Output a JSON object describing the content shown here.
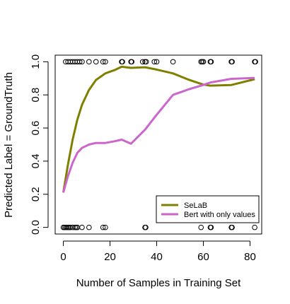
{
  "chart_data": {
    "type": "line",
    "title": "",
    "xlabel": "Number of Samples in Training Set",
    "ylabel": "Predicted Label = GroundTruth",
    "xlim": [
      -3.5,
      85
    ],
    "ylim": [
      -0.04,
      1.04
    ],
    "xticks": [
      0,
      20,
      40,
      60,
      80
    ],
    "yticks": [
      0.0,
      0.2,
      0.4,
      0.6,
      0.8,
      1.0
    ],
    "xtick_labels": [
      "0",
      "20",
      "40",
      "60",
      "80"
    ],
    "ytick_labels": [
      "0.0",
      "0.2",
      "0.4",
      "0.6",
      "0.8",
      "1.0"
    ],
    "grid": false,
    "legend_position": "bottom-right",
    "series": [
      {
        "name": "SeLaB",
        "color": "#808000",
        "x": [
          0,
          2,
          4,
          6,
          8,
          11,
          14,
          18,
          22,
          25,
          29,
          35,
          40,
          47,
          54,
          60,
          63,
          72,
          82
        ],
        "y": [
          0.21,
          0.38,
          0.53,
          0.65,
          0.74,
          0.83,
          0.89,
          0.93,
          0.95,
          0.97,
          0.963,
          0.967,
          0.953,
          0.93,
          0.89,
          0.862,
          0.856,
          0.86,
          0.895
        ]
      },
      {
        "name": "Bert with only values",
        "color": "#CC66CC",
        "x": [
          0,
          2,
          4,
          6,
          8,
          11,
          14,
          18,
          22,
          25,
          29,
          35,
          40,
          47,
          54,
          60,
          63,
          72,
          82
        ],
        "y": [
          0.21,
          0.31,
          0.39,
          0.45,
          0.48,
          0.5,
          0.51,
          0.51,
          0.52,
          0.53,
          0.505,
          0.59,
          0.68,
          0.8,
          0.835,
          0.86,
          0.875,
          0.897,
          0.902
        ]
      }
    ],
    "points": [
      {
        "x": 0,
        "y": 0
      },
      {
        "x": 0.5,
        "y": 0
      },
      {
        "x": 1,
        "y": 0
      },
      {
        "x": 1.5,
        "y": 0
      },
      {
        "x": 2,
        "y": 0
      },
      {
        "x": 2.5,
        "y": 0
      },
      {
        "x": 3,
        "y": 0
      },
      {
        "x": 4,
        "y": 0
      },
      {
        "x": 5,
        "y": 0
      },
      {
        "x": 5.5,
        "y": 0
      },
      {
        "x": 6,
        "y": 0
      },
      {
        "x": 8,
        "y": 0
      },
      {
        "x": 11,
        "y": 0
      },
      {
        "x": 17,
        "y": 0
      },
      {
        "x": 18,
        "y": 0
      },
      {
        "x": 35,
        "y": 0
      },
      {
        "x": 35.3,
        "y": 0
      },
      {
        "x": 59,
        "y": 0
      },
      {
        "x": 63,
        "y": 0
      },
      {
        "x": 63.3,
        "y": 0
      },
      {
        "x": 72,
        "y": 0
      },
      {
        "x": 72.3,
        "y": 0
      },
      {
        "x": 82,
        "y": 0
      },
      {
        "x": 1,
        "y": 1
      },
      {
        "x": 2,
        "y": 1
      },
      {
        "x": 3,
        "y": 1
      },
      {
        "x": 4,
        "y": 1
      },
      {
        "x": 5,
        "y": 1
      },
      {
        "x": 6,
        "y": 1
      },
      {
        "x": 7,
        "y": 1
      },
      {
        "x": 8,
        "y": 1
      },
      {
        "x": 11,
        "y": 1
      },
      {
        "x": 14,
        "y": 1
      },
      {
        "x": 17,
        "y": 1
      },
      {
        "x": 18,
        "y": 1
      },
      {
        "x": 25,
        "y": 1
      },
      {
        "x": 25.3,
        "y": 1
      },
      {
        "x": 29,
        "y": 1
      },
      {
        "x": 29.3,
        "y": 1
      },
      {
        "x": 34,
        "y": 1
      },
      {
        "x": 35,
        "y": 1
      },
      {
        "x": 35.5,
        "y": 1
      },
      {
        "x": 39,
        "y": 1
      },
      {
        "x": 40,
        "y": 1
      },
      {
        "x": 47,
        "y": 1
      },
      {
        "x": 59,
        "y": 1
      },
      {
        "x": 59.5,
        "y": 1
      },
      {
        "x": 60,
        "y": 1
      },
      {
        "x": 63,
        "y": 1
      },
      {
        "x": 63.3,
        "y": 1
      },
      {
        "x": 72,
        "y": 1
      },
      {
        "x": 72.3,
        "y": 1
      },
      {
        "x": 82,
        "y": 1
      },
      {
        "x": 82.3,
        "y": 1
      }
    ]
  }
}
